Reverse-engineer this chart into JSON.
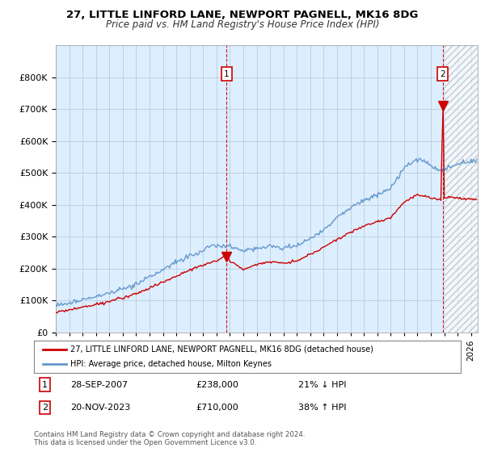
{
  "title": "27, LITTLE LINFORD LANE, NEWPORT PAGNELL, MK16 8DG",
  "subtitle": "Price paid vs. HM Land Registry's House Price Index (HPI)",
  "legend_line1": "27, LITTLE LINFORD LANE, NEWPORT PAGNELL, MK16 8DG (detached house)",
  "legend_line2": "HPI: Average price, detached house, Milton Keynes",
  "sale1_date": "28-SEP-2007",
  "sale1_price": 238000,
  "sale1_label": "21% ↓ HPI",
  "sale2_date": "20-NOV-2023",
  "sale2_price": 710000,
  "sale2_label": "38% ↑ HPI",
  "footnote": "Contains HM Land Registry data © Crown copyright and database right 2024.\nThis data is licensed under the Open Government Licence v3.0.",
  "hpi_color": "#6699cc",
  "price_color": "#cc0000",
  "ylim_min": 0,
  "ylim_max": 900000,
  "background_color": "#ffffff",
  "chart_bg_color": "#ddeeff",
  "grid_color": "#aabbcc",
  "sale1_x": 2007.75,
  "sale2_x": 2023.9,
  "xlim_min": 1995,
  "xlim_max": 2026.5,
  "title_fontsize": 9.5,
  "subtitle_fontsize": 8.5,
  "tick_fontsize": 7.5,
  "ytick_fontsize": 8
}
